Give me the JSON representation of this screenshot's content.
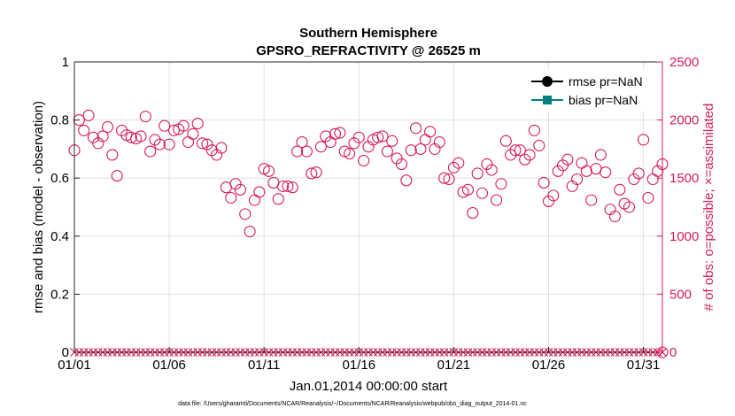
{
  "chart_data": {
    "type": "scatter",
    "title": "Southern Hemisphere",
    "subtitle": "GPSRO_REFRACTIVITY @ 26525 m",
    "xlabel": "Jan.01,2014 00:00:00 start",
    "ylabel": "rmse and bias (model - observation)",
    "ylabel_right": "# of obs: o=possible; ×=assimilated",
    "footnote": "data file: /Users/gharamti/Documents/NCAR/Reanalysis/~/Documents/NCAR/Reanalysis/webpub/obs_diag_output_2014-01.nc",
    "x_tick_labels": [
      "01/01",
      "01/06",
      "01/11",
      "01/16",
      "01/21",
      "01/26",
      "01/31"
    ],
    "x_tick_values": [
      1,
      6,
      11,
      16,
      21,
      26,
      31
    ],
    "xlim": [
      1,
      32
    ],
    "ylim": [
      0,
      1
    ],
    "y_ticks": [
      0,
      0.2,
      0.4,
      0.6,
      0.8,
      1
    ],
    "y_tick_labels": [
      "0",
      "0.2",
      "0.4",
      "0.6",
      "0.8",
      "1"
    ],
    "ylim_right": [
      0,
      2500
    ],
    "y_ticks_right": [
      0,
      500,
      1000,
      1500,
      2000,
      2500
    ],
    "y_tick_labels_right": [
      "0",
      "500",
      "1000",
      "1500",
      "2000",
      "2500"
    ],
    "grid": true,
    "legend_position": "top-right",
    "legend": [
      {
        "label": "rmse pr=NaN",
        "color": "#000000",
        "marker": "circle"
      },
      {
        "label": "bias pr=NaN",
        "color": "#008080",
        "marker": "square"
      }
    ],
    "colors": {
      "obs": "#d6195c",
      "left_axis": "#000000",
      "right_axis": "#d6195c",
      "grid": "#e0e0e0"
    },
    "series": [
      {
        "name": "possible",
        "axis": "right",
        "marker": "circle",
        "x_start": 1,
        "x_step": 0.25,
        "values": [
          1740,
          2000,
          1910,
          2040,
          1850,
          1800,
          1860,
          1940,
          1700,
          1520,
          1910,
          1870,
          1850,
          1840,
          1860,
          2030,
          1730,
          1830,
          1790,
          1950,
          1790,
          1910,
          1920,
          1950,
          1810,
          1880,
          1970,
          1800,
          1790,
          1740,
          1700,
          1760,
          1420,
          1330,
          1450,
          1400,
          1190,
          1040,
          1310,
          1380,
          1580,
          1560,
          1460,
          1320,
          1430,
          1430,
          1420,
          1730,
          1810,
          1730,
          1540,
          1550,
          1770,
          1860,
          1810,
          1880,
          1890,
          1730,
          1710,
          1800,
          1850,
          1650,
          1770,
          1830,
          1850,
          1860,
          1730,
          1820,
          1670,
          1620,
          1480,
          1740,
          1930,
          1750,
          1830,
          1900,
          1750,
          1810,
          1500,
          1490,
          1590,
          1630,
          1380,
          1400,
          1200,
          1540,
          1370,
          1620,
          1570,
          1310,
          1450,
          1820,
          1700,
          1740,
          1740,
          1660,
          1700,
          1910,
          1780,
          1460,
          1300,
          1350,
          1560,
          1610,
          1660,
          1430,
          1490,
          1630,
          1560,
          1310,
          1580,
          1700,
          1550,
          1230,
          1170,
          1400,
          1280,
          1250,
          1490,
          1540,
          1830,
          1330,
          1490,
          1560,
          1620
        ]
      },
      {
        "name": "assimilated",
        "axis": "right",
        "marker": "x",
        "x_start": 1,
        "x_step": 0.25,
        "count": 125,
        "value": 0
      }
    ]
  }
}
